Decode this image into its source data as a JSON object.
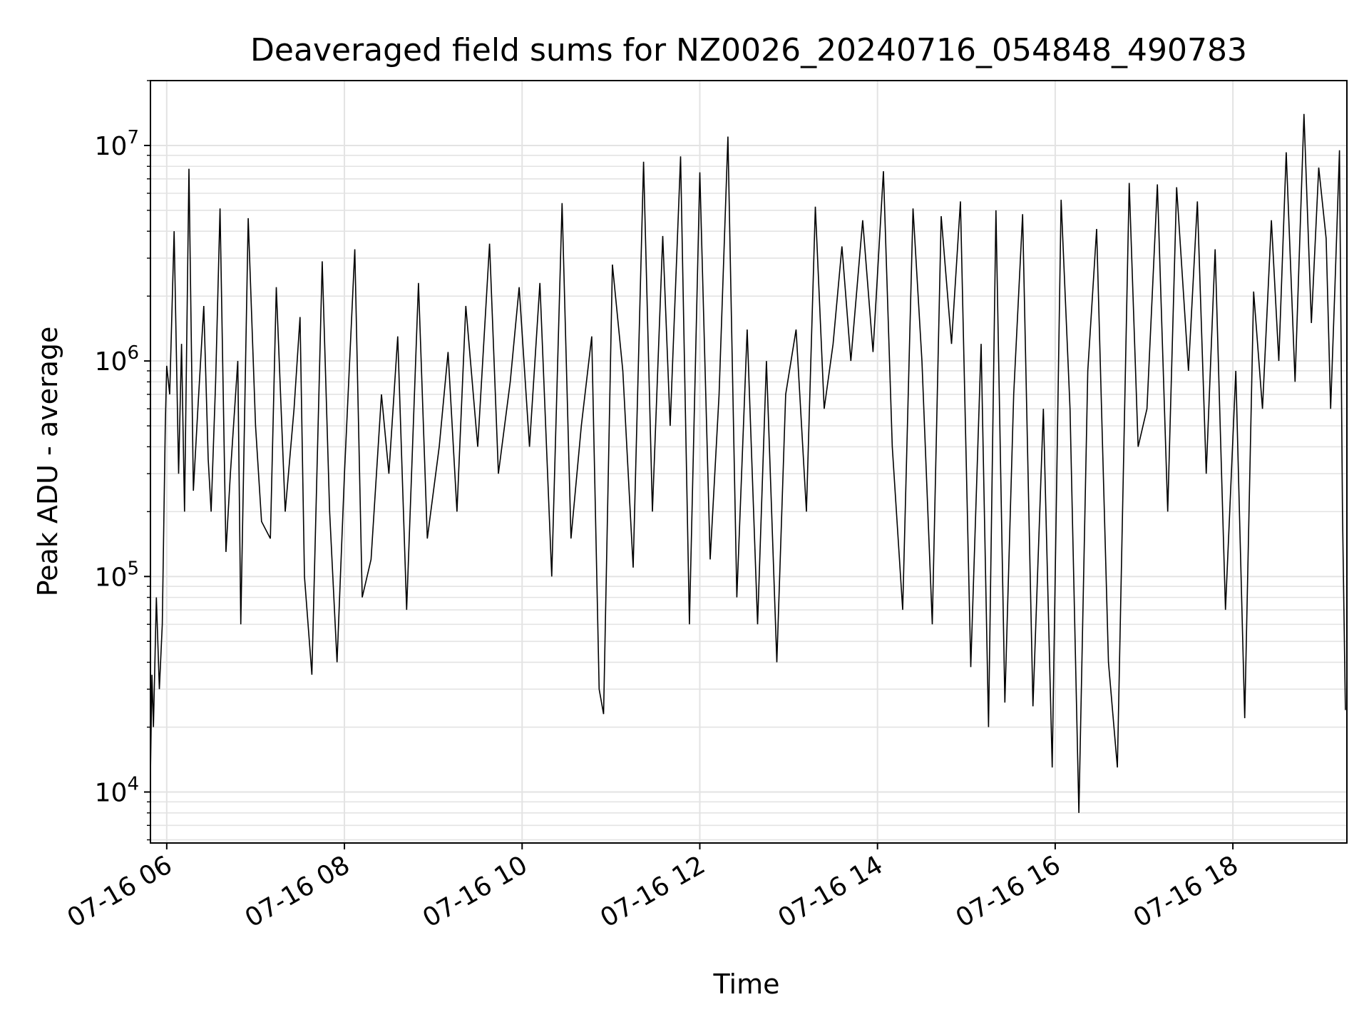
{
  "chart_data": {
    "type": "line",
    "title": "Deaveraged field sums for NZ0026_20240716_054848_490783",
    "xlabel": "Time",
    "ylabel": "Peak ADU - average",
    "y_scale": "log",
    "ylim": [
      5800,
      20000000
    ],
    "xlim": [
      "2024-07-16T05:49",
      "2024-07-16T19:17"
    ],
    "grid": true,
    "line_color": "#000000",
    "x_ticks": [
      {
        "t": "2024-07-16T06:00",
        "label": "07-16 06"
      },
      {
        "t": "2024-07-16T08:00",
        "label": "07-16 08"
      },
      {
        "t": "2024-07-16T10:00",
        "label": "07-16 10"
      },
      {
        "t": "2024-07-16T12:00",
        "label": "07-16 12"
      },
      {
        "t": "2024-07-16T14:00",
        "label": "07-16 14"
      },
      {
        "t": "2024-07-16T16:00",
        "label": "07-16 16"
      },
      {
        "t": "2024-07-16T18:00",
        "label": "07-16 18"
      }
    ],
    "y_ticks": [
      {
        "value": 10000,
        "base": "10",
        "exp": "4"
      },
      {
        "value": 100000,
        "base": "10",
        "exp": "5"
      },
      {
        "value": 1000000,
        "base": "10",
        "exp": "6"
      },
      {
        "value": 10000000,
        "base": "10",
        "exp": "7"
      }
    ],
    "series": [
      {
        "x": [
          "2024-07-16T05:49",
          "2024-07-16T05:50",
          "2024-07-16T05:51",
          "2024-07-16T05:53",
          "2024-07-16T05:55",
          "2024-07-16T05:57",
          "2024-07-16T05:59",
          "2024-07-16T06:00",
          "2024-07-16T06:02",
          "2024-07-16T06:05",
          "2024-07-16T06:08",
          "2024-07-16T06:10",
          "2024-07-16T06:12",
          "2024-07-16T06:15",
          "2024-07-16T06:18",
          "2024-07-16T06:21",
          "2024-07-16T06:25",
          "2024-07-16T06:28",
          "2024-07-16T06:30",
          "2024-07-16T06:33",
          "2024-07-16T06:36",
          "2024-07-16T06:40",
          "2024-07-16T06:43",
          "2024-07-16T06:48",
          "2024-07-16T06:50",
          "2024-07-16T06:55",
          "2024-07-16T07:00",
          "2024-07-16T07:04",
          "2024-07-16T07:10",
          "2024-07-16T07:14",
          "2024-07-16T07:20",
          "2024-07-16T07:26",
          "2024-07-16T07:30",
          "2024-07-16T07:33",
          "2024-07-16T07:38",
          "2024-07-16T07:45",
          "2024-07-16T07:50",
          "2024-07-16T07:55",
          "2024-07-16T08:00",
          "2024-07-16T08:07",
          "2024-07-16T08:12",
          "2024-07-16T08:18",
          "2024-07-16T08:25",
          "2024-07-16T08:30",
          "2024-07-16T08:36",
          "2024-07-16T08:42",
          "2024-07-16T08:50",
          "2024-07-16T08:56",
          "2024-07-16T09:04",
          "2024-07-16T09:10",
          "2024-07-16T09:16",
          "2024-07-16T09:22",
          "2024-07-16T09:30",
          "2024-07-16T09:38",
          "2024-07-16T09:44",
          "2024-07-16T09:52",
          "2024-07-16T09:58",
          "2024-07-16T10:05",
          "2024-07-16T10:12",
          "2024-07-16T10:20",
          "2024-07-16T10:27",
          "2024-07-16T10:33",
          "2024-07-16T10:40",
          "2024-07-16T10:47",
          "2024-07-16T10:52",
          "2024-07-16T10:55",
          "2024-07-16T11:01",
          "2024-07-16T11:08",
          "2024-07-16T11:15",
          "2024-07-16T11:22",
          "2024-07-16T11:28",
          "2024-07-16T11:35",
          "2024-07-16T11:40",
          "2024-07-16T11:47",
          "2024-07-16T11:53",
          "2024-07-16T12:00",
          "2024-07-16T12:07",
          "2024-07-16T12:13",
          "2024-07-16T12:19",
          "2024-07-16T12:25",
          "2024-07-16T12:32",
          "2024-07-16T12:39",
          "2024-07-16T12:45",
          "2024-07-16T12:52",
          "2024-07-16T12:58",
          "2024-07-16T13:05",
          "2024-07-16T13:12",
          "2024-07-16T13:18",
          "2024-07-16T13:24",
          "2024-07-16T13:30",
          "2024-07-16T13:36",
          "2024-07-16T13:42",
          "2024-07-16T13:50",
          "2024-07-16T13:57",
          "2024-07-16T14:04",
          "2024-07-16T14:10",
          "2024-07-16T14:17",
          "2024-07-16T14:24",
          "2024-07-16T14:30",
          "2024-07-16T14:37",
          "2024-07-16T14:43",
          "2024-07-16T14:50",
          "2024-07-16T14:56",
          "2024-07-16T15:03",
          "2024-07-16T15:10",
          "2024-07-16T15:15",
          "2024-07-16T15:20",
          "2024-07-16T15:26",
          "2024-07-16T15:32",
          "2024-07-16T15:38",
          "2024-07-16T15:45",
          "2024-07-16T15:52",
          "2024-07-16T15:58",
          "2024-07-16T16:04",
          "2024-07-16T16:10",
          "2024-07-16T16:16",
          "2024-07-16T16:22",
          "2024-07-16T16:28",
          "2024-07-16T16:36",
          "2024-07-16T16:42",
          "2024-07-16T16:50",
          "2024-07-16T16:56",
          "2024-07-16T17:02",
          "2024-07-16T17:09",
          "2024-07-16T17:16",
          "2024-07-16T17:22",
          "2024-07-16T17:30",
          "2024-07-16T17:36",
          "2024-07-16T17:42",
          "2024-07-16T17:48",
          "2024-07-16T17:55",
          "2024-07-16T18:02",
          "2024-07-16T18:08",
          "2024-07-16T18:14",
          "2024-07-16T18:20",
          "2024-07-16T18:26",
          "2024-07-16T18:31",
          "2024-07-16T18:36",
          "2024-07-16T18:42",
          "2024-07-16T18:48",
          "2024-07-16T18:53",
          "2024-07-16T18:58",
          "2024-07-16T19:03",
          "2024-07-16T19:06",
          "2024-07-16T19:09",
          "2024-07-16T19:12",
          "2024-07-16T19:14",
          "2024-07-16T19:16"
        ],
        "y": [
          12000,
          35000,
          20000,
          80000,
          30000,
          60000,
          500000,
          950000,
          700000,
          4000000,
          300000,
          1200000,
          200000,
          7800000,
          250000,
          600000,
          1800000,
          350000,
          200000,
          800000,
          5100000,
          130000,
          300000,
          1000000,
          60000,
          4600000,
          500000,
          180000,
          150000,
          2200000,
          200000,
          600000,
          1600000,
          100000,
          35000,
          2900000,
          200000,
          40000,
          300000,
          3300000,
          80000,
          120000,
          700000,
          300000,
          1300000,
          70000,
          2300000,
          150000,
          400000,
          1100000,
          200000,
          1800000,
          400000,
          3500000,
          300000,
          800000,
          2200000,
          400000,
          2300000,
          100000,
          5400000,
          150000,
          500000,
          1300000,
          30000,
          23000,
          2800000,
          900000,
          110000,
          8400000,
          200000,
          3800000,
          500000,
          8900000,
          60000,
          7500000,
          120000,
          700000,
          11000000,
          80000,
          1400000,
          60000,
          1000000,
          40000,
          700000,
          1400000,
          200000,
          5200000,
          600000,
          1200000,
          3400000,
          1000000,
          4500000,
          1100000,
          7600000,
          400000,
          70000,
          5100000,
          1000000,
          60000,
          4700000,
          1200000,
          5500000,
          38000,
          1200000,
          20000,
          5000000,
          26000,
          700000,
          4800000,
          25000,
          600000,
          13000,
          5600000,
          600000,
          8000,
          900000,
          4100000,
          40000,
          13000,
          6700000,
          400000,
          600000,
          6600000,
          200000,
          6400000,
          900000,
          5500000,
          300000,
          3300000,
          70000,
          900000,
          22000,
          2100000,
          600000,
          4500000,
          1000000,
          9300000,
          800000,
          14000000,
          1500000,
          7900000,
          3700000,
          600000,
          2300000,
          9500000,
          200000,
          24000
        ]
      }
    ]
  }
}
